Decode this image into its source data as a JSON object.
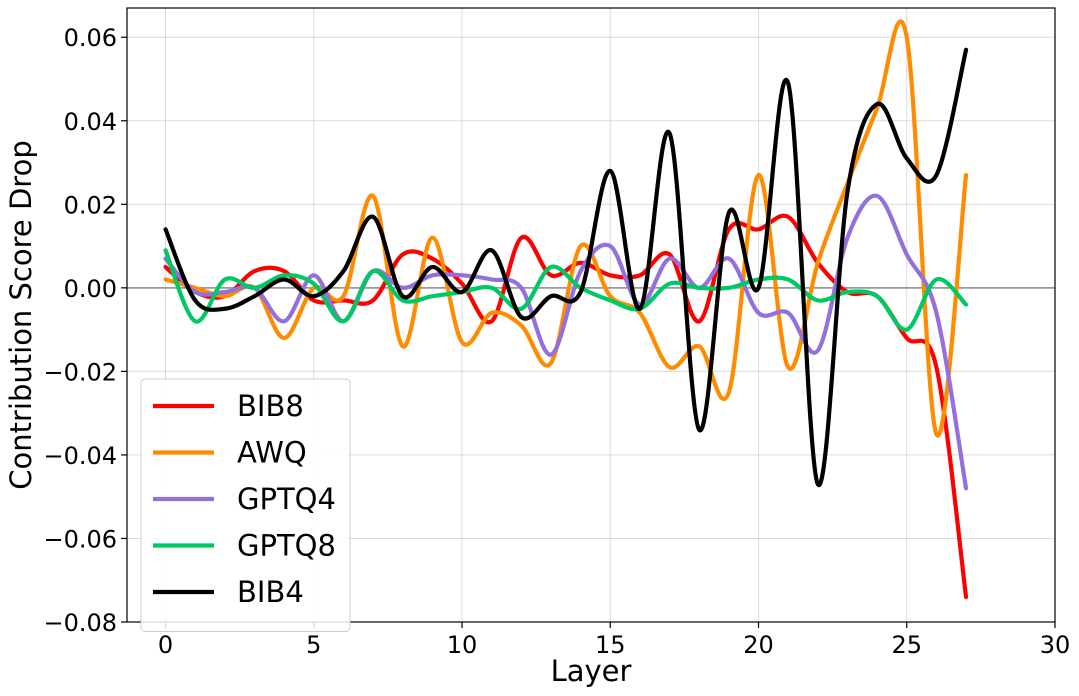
{
  "chart_data": {
    "type": "line",
    "title": "",
    "xlabel": "Layer",
    "ylabel": "Contribution Score Drop",
    "xlim": [
      -1.3,
      30
    ],
    "ylim": [
      -0.08,
      0.067
    ],
    "xticks": [
      0,
      5,
      10,
      15,
      20,
      25,
      30
    ],
    "yticks": [
      -0.08,
      -0.06,
      -0.04,
      -0.02,
      0.0,
      0.02,
      0.04,
      0.06
    ],
    "xtick_labels": [
      "0",
      "5",
      "10",
      "15",
      "20",
      "25",
      "30"
    ],
    "ytick_labels": [
      "−0.08",
      "−0.06",
      "−0.04",
      "−0.02",
      "0.00",
      "0.02",
      "0.04",
      "0.06"
    ],
    "grid": true,
    "zero_line": true,
    "legend_position": "lower-left",
    "x": [
      0,
      1,
      2,
      3,
      4,
      5,
      6,
      7,
      8,
      9,
      10,
      11,
      12,
      13,
      14,
      15,
      16,
      17,
      18,
      19,
      20,
      21,
      22,
      23,
      24,
      25,
      26,
      27
    ],
    "series": [
      {
        "name": "BIB8",
        "color": "#ff0000",
        "values": [
          0.005,
          -0.001,
          -0.002,
          0.004,
          0.004,
          -0.003,
          -0.003,
          -0.003,
          0.008,
          0.007,
          0.001,
          -0.008,
          0.012,
          0.003,
          0.006,
          0.003,
          0.003,
          0.008,
          -0.008,
          0.014,
          0.014,
          0.017,
          0.006,
          -0.001,
          -0.002,
          -0.012,
          -0.019,
          -0.074
        ]
      },
      {
        "name": "AWQ",
        "color": "#ff8c00",
        "values": [
          0.002,
          0.0,
          -0.002,
          0.0,
          -0.012,
          0.0,
          -0.002,
          0.022,
          -0.014,
          0.012,
          -0.013,
          -0.006,
          -0.009,
          -0.018,
          0.01,
          -0.002,
          -0.006,
          -0.019,
          -0.014,
          -0.025,
          0.027,
          -0.019,
          0.006,
          0.025,
          0.043,
          0.06,
          -0.035,
          0.027
        ]
      },
      {
        "name": "GPTQ4",
        "color": "#9370db",
        "values": [
          0.007,
          -0.001,
          -0.001,
          0.0,
          -0.008,
          0.003,
          -0.008,
          0.004,
          0.0,
          0.003,
          0.003,
          0.002,
          0.0,
          -0.016,
          0.004,
          0.01,
          -0.004,
          0.007,
          0.0,
          0.007,
          -0.006,
          -0.006,
          -0.015,
          0.012,
          0.022,
          0.008,
          -0.006,
          -0.048
        ]
      },
      {
        "name": "GPTQ8",
        "color": "#00c864",
        "values": [
          0.009,
          -0.008,
          0.002,
          0.0,
          0.003,
          0.001,
          -0.008,
          0.004,
          -0.003,
          -0.002,
          -0.001,
          0.0,
          -0.005,
          0.005,
          0.0,
          -0.003,
          -0.005,
          0.001,
          0.0,
          0.0,
          0.002,
          0.002,
          -0.003,
          -0.001,
          -0.002,
          -0.01,
          0.002,
          -0.004
        ]
      },
      {
        "name": "BIB4",
        "color": "#000000",
        "values": [
          0.014,
          -0.003,
          -0.005,
          -0.002,
          0.002,
          -0.002,
          0.004,
          0.017,
          -0.002,
          0.005,
          -0.001,
          0.009,
          -0.007,
          -0.002,
          -0.001,
          0.028,
          -0.005,
          0.037,
          -0.034,
          0.018,
          0.0,
          0.049,
          -0.047,
          0.023,
          0.044,
          0.031,
          0.027,
          0.057
        ]
      }
    ]
  }
}
